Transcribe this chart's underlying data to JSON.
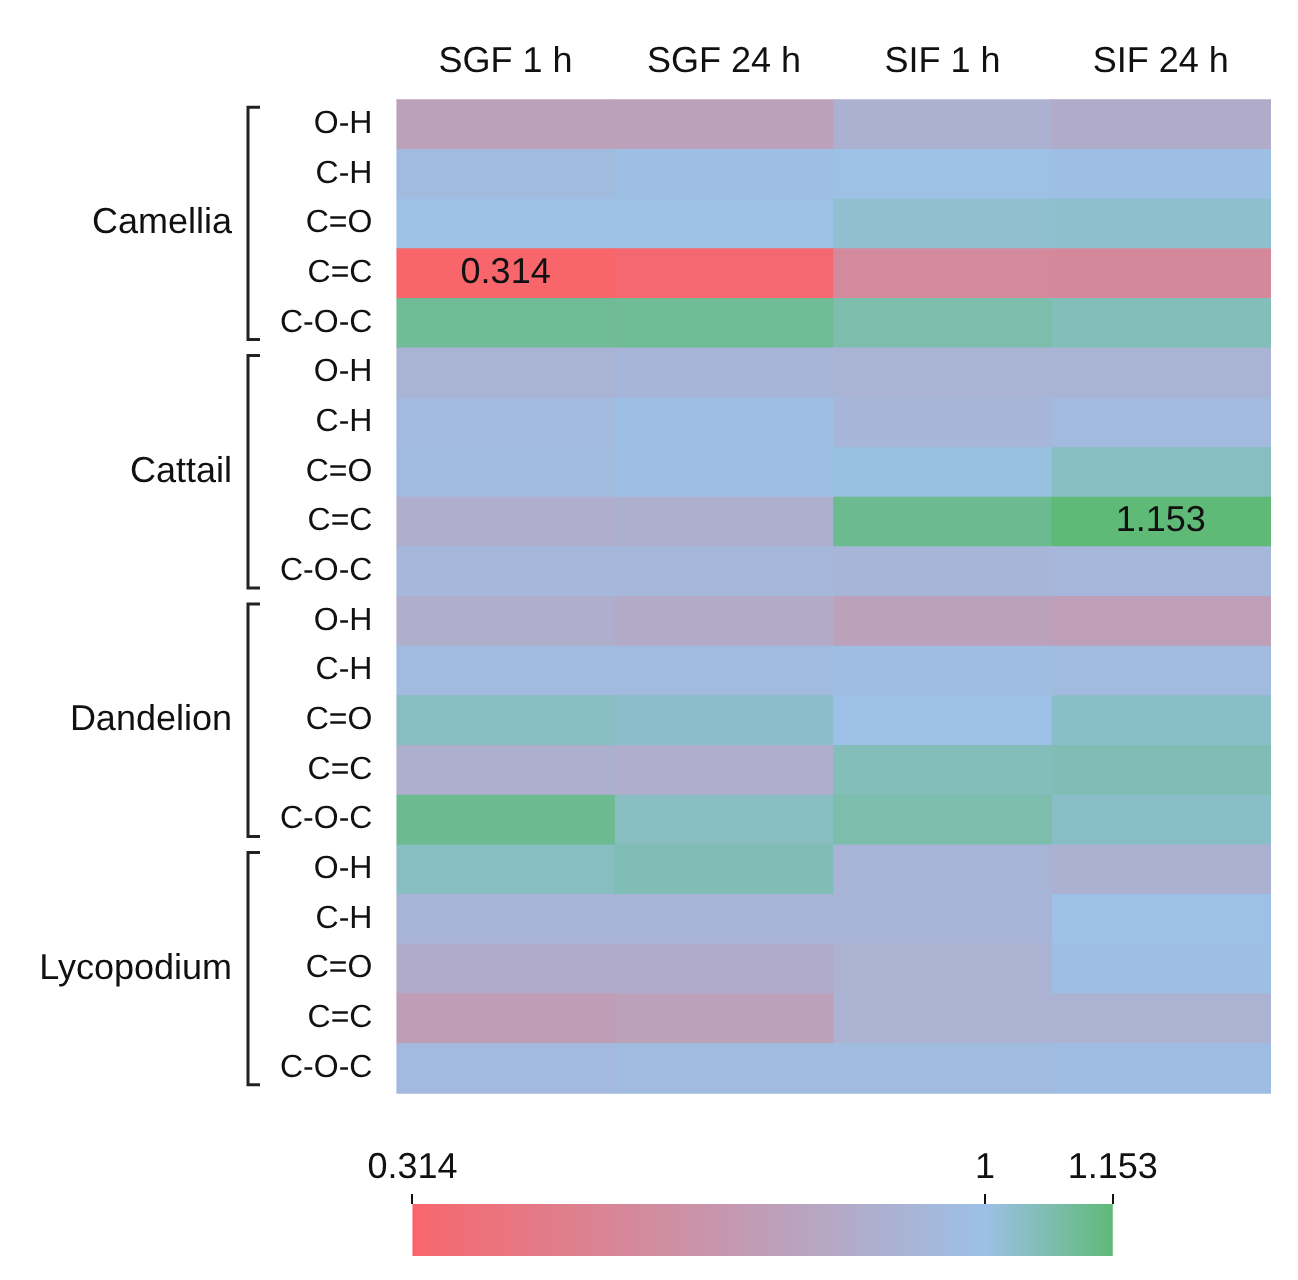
{
  "chart_data": {
    "type": "heatmap",
    "categories": [
      "SGF 1 h",
      "SGF 24 h",
      "SIF 1 h",
      "SIF 24 h"
    ],
    "y_categories": [
      "O-H",
      "C-H",
      "C=O",
      "C=C",
      "C-O-C",
      "O-H",
      "C-H",
      "C=O",
      "C=C",
      "C-O-C",
      "O-H",
      "C-H",
      "C=O",
      "C=C",
      "C-O-C",
      "O-H",
      "C-H",
      "C=O",
      "C=C",
      "C-O-C"
    ],
    "cells": [
      [
        0.76,
        0.76,
        0.88,
        0.84
      ],
      [
        0.96,
        0.99,
        1.0,
        0.99
      ],
      [
        1.0,
        1.0,
        1.03,
        1.035
      ],
      [
        0.314,
        0.33,
        0.59,
        0.58
      ],
      [
        1.11,
        1.11,
        1.08,
        1.06
      ],
      [
        0.9,
        0.92,
        0.9,
        0.9
      ],
      [
        0.95,
        0.99,
        0.92,
        0.95
      ],
      [
        0.96,
        0.99,
        1.01,
        1.05
      ],
      [
        0.86,
        0.87,
        1.12,
        1.153
      ],
      [
        0.93,
        0.93,
        0.92,
        0.93
      ],
      [
        0.86,
        0.83,
        0.76,
        0.74
      ],
      [
        0.96,
        0.96,
        0.98,
        0.96
      ],
      [
        1.05,
        1.04,
        1.0,
        1.045
      ],
      [
        0.87,
        0.86,
        1.06,
        1.07
      ],
      [
        1.12,
        1.05,
        1.08,
        1.045
      ],
      [
        1.05,
        1.07,
        0.91,
        0.88
      ],
      [
        0.91,
        0.91,
        0.91,
        1.0
      ],
      [
        0.84,
        0.84,
        0.89,
        0.99
      ],
      [
        0.73,
        0.76,
        0.89,
        0.89
      ],
      [
        0.95,
        0.96,
        0.96,
        0.98
      ]
    ],
    "cell_labels": [
      [
        null,
        null,
        null,
        null
      ],
      [
        null,
        null,
        null,
        null
      ],
      [
        null,
        null,
        null,
        null
      ],
      [
        "0.314",
        null,
        null,
        null
      ],
      [
        null,
        null,
        null,
        null
      ],
      [
        null,
        null,
        null,
        null
      ],
      [
        null,
        null,
        null,
        null
      ],
      [
        null,
        null,
        null,
        null
      ],
      [
        null,
        null,
        null,
        "1.153"
      ],
      [
        null,
        null,
        null,
        null
      ],
      [
        null,
        null,
        null,
        null
      ],
      [
        null,
        null,
        null,
        null
      ],
      [
        null,
        null,
        null,
        null
      ],
      [
        null,
        null,
        null,
        null
      ],
      [
        null,
        null,
        null,
        null
      ],
      [
        null,
        null,
        null,
        null
      ],
      [
        null,
        null,
        null,
        null
      ],
      [
        null,
        null,
        null,
        null
      ],
      [
        null,
        null,
        null,
        null
      ],
      [
        null,
        null,
        null,
        null
      ]
    ],
    "clim": [
      0.314,
      1.153
    ],
    "cticks": [
      0.314,
      1,
      1.153
    ],
    "annotations": [
      "Camellia",
      "Cattail",
      "Dandelion",
      "Lycopodium"
    ]
  }
}
